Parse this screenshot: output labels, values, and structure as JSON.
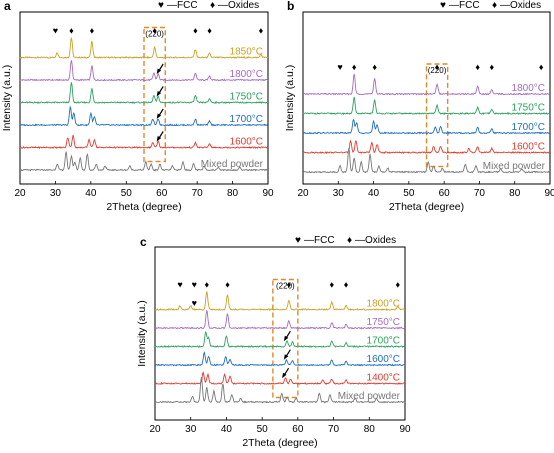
{
  "chart_data": [
    {
      "panel": "a",
      "type": "line",
      "xlabel": "2Theta (degree)",
      "ylabel": "Intensity (a.u.)",
      "xlim": [
        20,
        90
      ],
      "xticks": [
        20,
        30,
        40,
        50,
        60,
        70,
        80,
        90
      ],
      "legend": {
        "fcc": "—FCC",
        "oxides": "—Oxides",
        "placement": "top-right"
      },
      "highlight": {
        "label": "(220)",
        "x_range": [
          55,
          61
        ]
      },
      "series": [
        {
          "name": "1850°C",
          "color": "#c9a227",
          "offset": 5,
          "peaks": [
            [
              30.5,
              0.25
            ],
            [
              34.5,
              1.0
            ],
            [
              40.3,
              0.8
            ],
            [
              58.0,
              0.5
            ],
            [
              69.5,
              0.4
            ],
            [
              73.5,
              0.2
            ],
            [
              88.0,
              0.15
            ]
          ],
          "markers": [
            {
              "x": 30,
              "sym": "♥"
            },
            {
              "x": 34.5,
              "sym": "♦"
            },
            {
              "x": 40.3,
              "sym": "♦"
            },
            {
              "x": 58,
              "sym": "♦"
            },
            {
              "x": 69.5,
              "sym": "♦"
            },
            {
              "x": 73.5,
              "sym": "♦"
            },
            {
              "x": 88,
              "sym": "♦"
            }
          ]
        },
        {
          "name": "1800°C",
          "color": "#a56cc1",
          "offset": 4,
          "peaks": [
            [
              34.5,
              1.0
            ],
            [
              40.3,
              0.7
            ],
            [
              57.8,
              0.35
            ],
            [
              59.0,
              0.3
            ],
            [
              69.5,
              0.35
            ],
            [
              73.5,
              0.2
            ]
          ],
          "arrow_x": 59
        },
        {
          "name": "1750°C",
          "color": "#2ca25f",
          "offset": 3,
          "peaks": [
            [
              34.5,
              1.0
            ],
            [
              40.3,
              0.7
            ],
            [
              57.8,
              0.35
            ],
            [
              59.0,
              0.3
            ],
            [
              69.5,
              0.35
            ],
            [
              73.5,
              0.2
            ]
          ],
          "arrow_x": 59
        },
        {
          "name": "1700°C",
          "color": "#1f6fbf",
          "offset": 2,
          "peaks": [
            [
              34.2,
              0.9
            ],
            [
              35.2,
              0.6
            ],
            [
              40.0,
              0.6
            ],
            [
              41.0,
              0.4
            ],
            [
              57.5,
              0.3
            ],
            [
              59.0,
              0.3
            ],
            [
              69.5,
              0.3
            ],
            [
              73.5,
              0.2
            ]
          ],
          "arrow_x": 59
        },
        {
          "name": "1600°C",
          "color": "#e03c31",
          "offset": 1,
          "peaks": [
            [
              33.5,
              0.5
            ],
            [
              35.0,
              0.6
            ],
            [
              39.5,
              0.4
            ],
            [
              41.0,
              0.4
            ],
            [
              57.5,
              0.25
            ],
            [
              59.0,
              0.3
            ],
            [
              69.5,
              0.25
            ],
            [
              73.5,
              0.2
            ]
          ],
          "arrow_x": 59
        },
        {
          "name": "Mixed powder",
          "color": "#777777",
          "offset": 0,
          "peaks": [
            [
              30.5,
              0.3
            ],
            [
              33.0,
              0.9
            ],
            [
              34.5,
              0.7
            ],
            [
              35.5,
              0.4
            ],
            [
              37.0,
              0.6
            ],
            [
              39.0,
              0.8
            ],
            [
              41.5,
              0.3
            ],
            [
              44.0,
              0.2
            ],
            [
              51.0,
              0.2
            ],
            [
              55.5,
              0.4
            ],
            [
              57.0,
              0.3
            ],
            [
              59.5,
              0.3
            ],
            [
              63.0,
              0.2
            ],
            [
              66.0,
              0.4
            ],
            [
              69.0,
              0.3
            ],
            [
              72.0,
              0.2
            ],
            [
              76.0,
              0.15
            ],
            [
              82.0,
              0.15
            ]
          ]
        }
      ]
    },
    {
      "panel": "b",
      "type": "line",
      "xlabel": "2Theta (degree)",
      "ylabel": "Intensity (a.u.)",
      "xlim": [
        20,
        90
      ],
      "xticks": [
        20,
        30,
        40,
        50,
        60,
        70,
        80,
        90
      ],
      "legend": {
        "fcc": "—FCC",
        "oxides": "—Oxides",
        "placement": "top-right"
      },
      "highlight": {
        "label": "(220)",
        "x_range": [
          55,
          61
        ]
      },
      "series": [
        {
          "name": "1800°C",
          "color": "#a56cc1",
          "offset": 4,
          "peaks": [
            [
              34.5,
              1.0
            ],
            [
              40.3,
              0.8
            ],
            [
              58.0,
              0.5
            ],
            [
              69.5,
              0.4
            ],
            [
              73.5,
              0.2
            ]
          ],
          "markers": [
            {
              "x": 30.5,
              "sym": "♥"
            },
            {
              "x": 34.5,
              "sym": "♦"
            },
            {
              "x": 40.3,
              "sym": "♦"
            },
            {
              "x": 58,
              "sym": "♦"
            },
            {
              "x": 69.5,
              "sym": "♦"
            },
            {
              "x": 73.5,
              "sym": "♦"
            },
            {
              "x": 87.5,
              "sym": "♦"
            }
          ]
        },
        {
          "name": "1750°C",
          "color": "#2ca25f",
          "offset": 3,
          "peaks": [
            [
              34.5,
              0.8
            ],
            [
              40.3,
              0.7
            ],
            [
              58.0,
              0.4
            ],
            [
              69.5,
              0.3
            ],
            [
              73.5,
              0.2
            ]
          ]
        },
        {
          "name": "1700°C",
          "color": "#1f6fbf",
          "offset": 2,
          "peaks": [
            [
              34.3,
              0.7
            ],
            [
              35.2,
              0.5
            ],
            [
              40.0,
              0.6
            ],
            [
              41.0,
              0.4
            ],
            [
              57.5,
              0.3
            ],
            [
              59.0,
              0.3
            ],
            [
              69.5,
              0.3
            ],
            [
              73.5,
              0.2
            ]
          ]
        },
        {
          "name": "1600°C",
          "color": "#e03c31",
          "offset": 1,
          "peaks": [
            [
              33.5,
              0.6
            ],
            [
              35.0,
              0.6
            ],
            [
              39.5,
              0.5
            ],
            [
              41.0,
              0.4
            ],
            [
              57.0,
              0.3
            ],
            [
              59.0,
              0.3
            ],
            [
              67.0,
              0.2
            ],
            [
              69.5,
              0.3
            ],
            [
              73.5,
              0.2
            ]
          ]
        },
        {
          "name": "Mixed powder",
          "color": "#777777",
          "offset": 0,
          "peaks": [
            [
              30.5,
              0.3
            ],
            [
              33.0,
              1.2
            ],
            [
              34.5,
              0.7
            ],
            [
              36.5,
              0.5
            ],
            [
              39.0,
              0.9
            ],
            [
              41.5,
              0.3
            ],
            [
              44.0,
              0.2
            ],
            [
              55.5,
              0.5
            ],
            [
              57.0,
              0.3
            ],
            [
              59.5,
              0.2
            ],
            [
              66.0,
              0.4
            ],
            [
              69.0,
              0.3
            ],
            [
              76.0,
              0.15
            ],
            [
              82.0,
              0.15
            ]
          ]
        }
      ]
    },
    {
      "panel": "c",
      "type": "line",
      "xlabel": "2Theta (degree)",
      "ylabel": "Intensity (a.u.)",
      "xlim": [
        20,
        90
      ],
      "xticks": [
        20,
        30,
        40,
        50,
        60,
        70,
        80,
        90
      ],
      "legend": {
        "fcc": "—FCC",
        "oxides": "—Oxides",
        "placement": "top-right"
      },
      "highlight": {
        "label": "(220)",
        "x_range": [
          53,
          60
        ]
      },
      "series": [
        {
          "name": "1800°C",
          "color": "#c9a227",
          "offset": 5,
          "peaks": [
            [
              27.0,
              0.2
            ],
            [
              30.0,
              0.2
            ],
            [
              34.5,
              1.0
            ],
            [
              40.3,
              0.8
            ],
            [
              57.5,
              0.5
            ],
            [
              69.5,
              0.4
            ],
            [
              73.5,
              0.2
            ],
            [
              88.0,
              0.15
            ]
          ],
          "markers": [
            {
              "x": 27,
              "sym": "♥"
            },
            {
              "x": 31,
              "sym": "♥"
            },
            {
              "x": 34.5,
              "sym": "♦"
            },
            {
              "x": 40.3,
              "sym": "♦"
            },
            {
              "x": 57.5,
              "sym": "♦"
            },
            {
              "x": 69.5,
              "sym": "♦"
            },
            {
              "x": 73.5,
              "sym": "♦"
            },
            {
              "x": 88,
              "sym": "♦"
            }
          ]
        },
        {
          "name": "1750°C",
          "color": "#a56cc1",
          "offset": 4,
          "peaks": [
            [
              34.5,
              1.0
            ],
            [
              40.3,
              0.8
            ],
            [
              57.5,
              0.4
            ],
            [
              69.5,
              0.3
            ],
            [
              73.5,
              0.2
            ]
          ],
          "markers": [
            {
              "x": 31,
              "sym": "♥"
            }
          ]
        },
        {
          "name": "1700°C",
          "color": "#2ca25f",
          "offset": 3,
          "peaks": [
            [
              34.2,
              0.8
            ],
            [
              35.0,
              0.5
            ],
            [
              40.0,
              0.6
            ],
            [
              57.0,
              0.3
            ],
            [
              58.5,
              0.25
            ],
            [
              69.5,
              0.3
            ],
            [
              73.5,
              0.2
            ]
          ],
          "arrow_x": 56.5
        },
        {
          "name": "1600°C",
          "color": "#1f6fbf",
          "offset": 2,
          "peaks": [
            [
              33.8,
              0.7
            ],
            [
              35.0,
              0.5
            ],
            [
              39.8,
              0.5
            ],
            [
              41.0,
              0.3
            ],
            [
              56.8,
              0.3
            ],
            [
              58.5,
              0.25
            ],
            [
              69.5,
              0.3
            ],
            [
              73.5,
              0.2
            ]
          ],
          "arrow_x": 56.5
        },
        {
          "name": "1400°C",
          "color": "#e03c31",
          "offset": 1,
          "peaks": [
            [
              33.5,
              0.6
            ],
            [
              34.8,
              0.5
            ],
            [
              39.5,
              0.5
            ],
            [
              41.0,
              0.4
            ],
            [
              56.5,
              0.3
            ],
            [
              58.0,
              0.25
            ],
            [
              67.0,
              0.2
            ],
            [
              69.5,
              0.25
            ],
            [
              73.5,
              0.2
            ]
          ],
          "arrow_x": 56.0
        },
        {
          "name": "Mixed powder",
          "color": "#777777",
          "offset": 0,
          "peaks": [
            [
              30.5,
              0.3
            ],
            [
              33.0,
              1.4
            ],
            [
              34.5,
              0.8
            ],
            [
              36.5,
              0.6
            ],
            [
              39.0,
              1.0
            ],
            [
              41.5,
              0.4
            ],
            [
              44.0,
              0.2
            ],
            [
              55.5,
              0.5
            ],
            [
              57.0,
              0.3
            ],
            [
              59.5,
              0.2
            ],
            [
              66.0,
              0.5
            ],
            [
              69.0,
              0.4
            ],
            [
              76.0,
              0.2
            ],
            [
              82.0,
              0.2
            ]
          ]
        }
      ]
    }
  ]
}
